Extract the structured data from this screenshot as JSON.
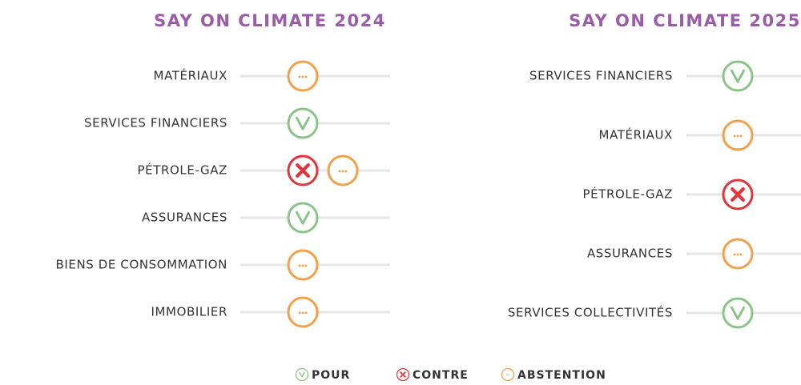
{
  "panels": [
    {
      "title": "SAY ON CLIMATE 2024",
      "rows": [
        {
          "label": "MATÉRIAUX",
          "votes": [
            "ABSTENTION"
          ]
        },
        {
          "label": "SERVICES FINANCIERS",
          "votes": [
            "POUR"
          ]
        },
        {
          "label": "PÉTROLE-GAZ",
          "votes": [
            "CONTRE",
            "ABSTENTION"
          ]
        },
        {
          "label": "ASSURANCES",
          "votes": [
            "POUR"
          ]
        },
        {
          "label": "BIENS DE CONSOMMATION",
          "votes": [
            "ABSTENTION"
          ]
        },
        {
          "label": "IMMOBILIER",
          "votes": [
            "ABSTENTION"
          ]
        }
      ]
    },
    {
      "title": "SAY ON CLIMATE 2025",
      "rows": [
        {
          "label": "SERVICES FINANCIERS",
          "votes": [
            "POUR"
          ]
        },
        {
          "label": "MATÉRIAUX",
          "votes": [
            "ABSTENTION"
          ]
        },
        {
          "label": "PÉTROLE-GAZ",
          "votes": [
            "CONTRE"
          ]
        },
        {
          "label": "ASSURANCES",
          "votes": [
            "ABSTENTION"
          ]
        },
        {
          "label": "SERVICES COLLECTIVITÉS",
          "votes": [
            "POUR"
          ]
        }
      ]
    }
  ],
  "legend": [
    {
      "label": "POUR",
      "color": "#8cc38a"
    },
    {
      "label": "CONTRE",
      "color": "#e0353c"
    },
    {
      "label": "ABSTENTION",
      "color": "#f3a04b"
    }
  ],
  "title_color": "#9b5ca8"
}
